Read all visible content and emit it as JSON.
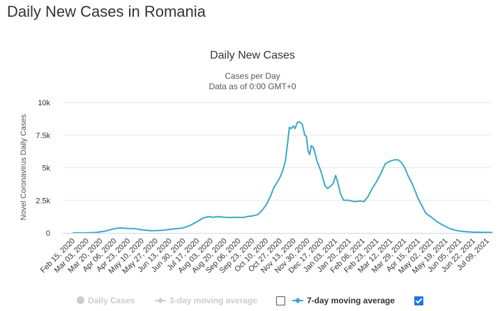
{
  "page": {
    "title": "Daily New Cases in Romania"
  },
  "colors": {
    "line": "#3ba8c8",
    "grid": "#e6e6e6",
    "axis": "#ccd6eb",
    "legend_off": "#cccccc",
    "checkbox_checked": "#1a73e8"
  },
  "chart_data": {
    "type": "line",
    "title": "Daily New Cases",
    "subtitle": "Cases per Day",
    "subtitle2": "Data as of 0:00 GMT+0",
    "ylabel": "Novel Coronavirus Daily Cases",
    "xlabel": "",
    "ylim": [
      0,
      10000
    ],
    "grid": true,
    "y_ticks": [
      0,
      2500,
      5000,
      7500,
      10000
    ],
    "y_tick_labels": [
      "0",
      "2.5k",
      "5k",
      "7.5k",
      "10k"
    ],
    "x_tick_labels": [
      "Feb 15, 2020",
      "Mar 03, 2020",
      "Mar 20, 2020",
      "Apr 06, 2020",
      "Apr 23, 2020",
      "May 10, 2020",
      "May 27, 2020",
      "Jun 13, 2020",
      "Jun 30, 2020",
      "Jul 17, 2020",
      "Aug 03, 2020",
      "Aug 20, 2020",
      "Sep 06, 2020",
      "Sep 23, 2020",
      "Oct 10, 2020",
      "Oct 27, 2020",
      "Nov 13, 2020",
      "Nov 30, 2020",
      "Dec 17, 2020",
      "Jan 03, 2021",
      "Jan 20, 2021",
      "Feb 06, 2021",
      "Feb 23, 2021",
      "Mar 12, 2021",
      "Mar 29, 2021",
      "Apr 15, 2021",
      "May 02, 2021",
      "May 19, 2021",
      "Jun 05, 2021",
      "Jun 22, 2021",
      "Jul 09, 2021"
    ],
    "legend_position": "bottom",
    "series": [
      {
        "name": "7-day moving average",
        "x": [
          "2020-02-15",
          "2020-03-01",
          "2020-03-15",
          "2020-03-27",
          "2020-04-06",
          "2020-04-14",
          "2020-04-23",
          "2020-05-01",
          "2020-05-10",
          "2020-05-20",
          "2020-05-27",
          "2020-06-05",
          "2020-06-13",
          "2020-06-22",
          "2020-06-30",
          "2020-07-08",
          "2020-07-17",
          "2020-07-25",
          "2020-08-01",
          "2020-08-06",
          "2020-08-12",
          "2020-08-20",
          "2020-08-28",
          "2020-09-06",
          "2020-09-12",
          "2020-09-17",
          "2020-09-23",
          "2020-09-30",
          "2020-10-05",
          "2020-10-10",
          "2020-10-15",
          "2020-10-20",
          "2020-10-27",
          "2020-10-31",
          "2020-11-03",
          "2020-11-06",
          "2020-11-08",
          "2020-11-10",
          "2020-11-13",
          "2020-11-15",
          "2020-11-18",
          "2020-11-21",
          "2020-11-24",
          "2020-11-27",
          "2020-11-29",
          "2020-12-01",
          "2020-12-03",
          "2020-12-05",
          "2020-12-08",
          "2020-12-12",
          "2020-12-17",
          "2020-12-22",
          "2020-12-25",
          "2020-12-29",
          "2021-01-01",
          "2021-01-04",
          "2021-01-06",
          "2021-01-10",
          "2021-01-14",
          "2021-01-20",
          "2021-01-27",
          "2021-02-03",
          "2021-02-08",
          "2021-02-13",
          "2021-02-18",
          "2021-02-23",
          "2021-03-01",
          "2021-03-06",
          "2021-03-12",
          "2021-03-17",
          "2021-03-22",
          "2021-03-26",
          "2021-03-30",
          "2021-04-03",
          "2021-04-08",
          "2021-04-12",
          "2021-04-15",
          "2021-04-20",
          "2021-04-25",
          "2021-05-02",
          "2021-05-08",
          "2021-05-13",
          "2021-05-19",
          "2021-05-26",
          "2021-06-01",
          "2021-06-05",
          "2021-06-12",
          "2021-06-22",
          "2021-06-30",
          "2021-07-09",
          "2021-07-16"
        ],
        "y": [
          0,
          5,
          30,
          150,
          320,
          380,
          340,
          330,
          240,
          170,
          170,
          200,
          270,
          320,
          380,
          550,
          850,
          1150,
          1250,
          1200,
          1250,
          1200,
          1180,
          1200,
          1180,
          1250,
          1300,
          1400,
          1700,
          2100,
          2700,
          3500,
          4200,
          4800,
          5500,
          7000,
          8100,
          8000,
          8200,
          8000,
          8500,
          8500,
          8300,
          7500,
          7400,
          6300,
          6000,
          6700,
          6500,
          5500,
          4700,
          3600,
          3400,
          3600,
          3800,
          4400,
          4000,
          3000,
          2500,
          2500,
          2400,
          2450,
          2400,
          2800,
          3400,
          3900,
          4600,
          5300,
          5500,
          5600,
          5600,
          5400,
          5000,
          4400,
          3800,
          3200,
          2700,
          2100,
          1500,
          1200,
          900,
          700,
          500,
          300,
          200,
          150,
          100,
          60,
          50,
          40,
          30
        ]
      }
    ]
  },
  "legend": {
    "daily_cases": "Daily Cases",
    "three_day": "3-day moving average",
    "seven_day": "7-day moving average",
    "three_day_checked": false,
    "seven_day_checked": true
  }
}
